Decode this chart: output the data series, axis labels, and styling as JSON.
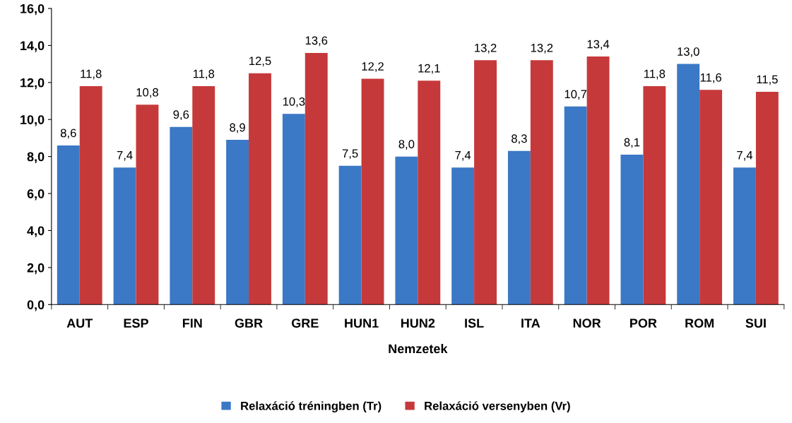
{
  "chart_data": {
    "type": "bar",
    "xlabel": "Nemzetek",
    "categories": [
      "AUT",
      "ESP",
      "FIN",
      "GBR",
      "GRE",
      "HUN1",
      "HUN2",
      "ISL",
      "ITA",
      "NOR",
      "POR",
      "ROM",
      "SUI"
    ],
    "series": [
      {
        "name": "Relaxáció tréningben (Tr)",
        "color": "#3b78c6",
        "values": [
          8.6,
          7.4,
          9.6,
          8.9,
          10.3,
          7.5,
          8.0,
          7.4,
          8.3,
          10.7,
          8.1,
          13.0,
          7.4
        ],
        "value_labels": [
          "8,6",
          "7,4",
          "9,6",
          "8,9",
          "10,3",
          "7,5",
          "8,0",
          "7,4",
          "8,3",
          "10,7",
          "8,1",
          "13,0",
          "7,4"
        ]
      },
      {
        "name": "Relaxáció versenyben (Vr)",
        "color": "#c6393a",
        "values": [
          11.8,
          10.8,
          11.8,
          12.5,
          13.6,
          12.2,
          12.1,
          13.2,
          13.2,
          13.4,
          11.8,
          11.6,
          11.5
        ],
        "value_labels": [
          "11,8",
          "10,8",
          "11,8",
          "12,5",
          "13,6",
          "12,2",
          "12,1",
          "13,2",
          "13,2",
          "13,4",
          "11,8",
          "11,6",
          "11,5"
        ]
      }
    ],
    "ylim": [
      0,
      16
    ],
    "yticks": [
      {
        "value": 0,
        "label": "0,0"
      },
      {
        "value": 2,
        "label": "2,0"
      },
      {
        "value": 4,
        "label": "4,0"
      },
      {
        "value": 6,
        "label": "6,0"
      },
      {
        "value": 8,
        "label": "8,0"
      },
      {
        "value": 10,
        "label": "10,0"
      },
      {
        "value": 12,
        "label": "12,0"
      },
      {
        "value": 14,
        "label": "14,0"
      },
      {
        "value": 16,
        "label": "16,0"
      }
    ],
    "grid": false,
    "legend": "bottom"
  }
}
